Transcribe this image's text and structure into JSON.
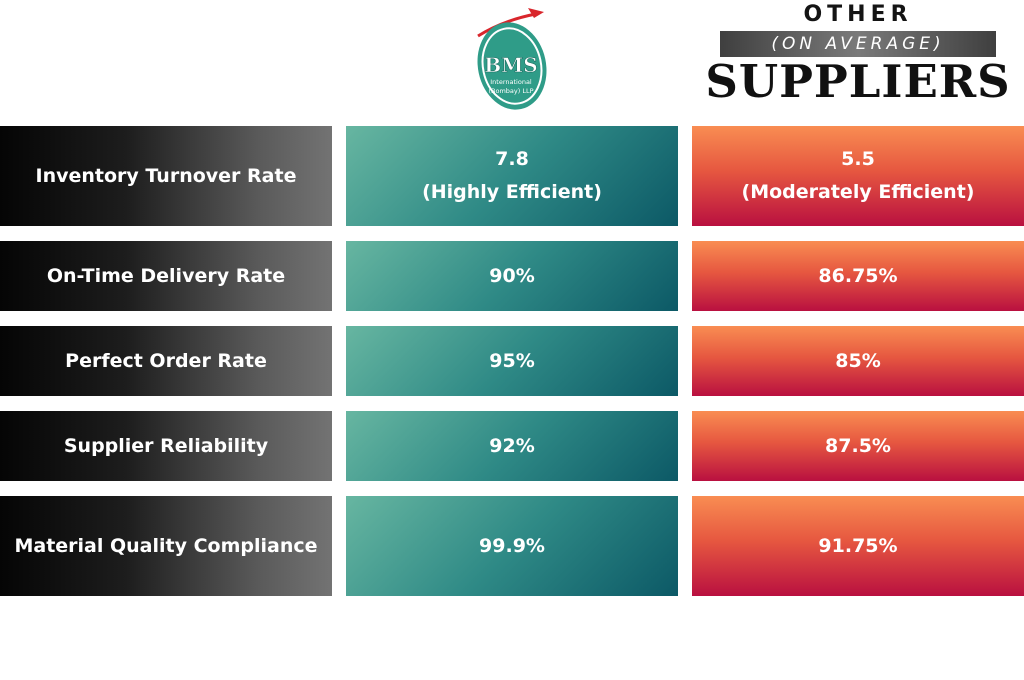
{
  "bms": {
    "brand": "BMS",
    "line1": "International",
    "line2": "(Bombay) LLP"
  },
  "other": {
    "word": "OTHER",
    "qualifier": "(ON AVERAGE)",
    "suppliers": "SUPPLIERS"
  },
  "rows": [
    {
      "metric": "Inventory Turnover Rate",
      "bms_value": "7.8\n(Highly Efficient)",
      "other_value": "5.5\n(Moderately Efficient)"
    },
    {
      "metric": "On-Time Delivery Rate",
      "bms_value": "90%",
      "other_value": "86.75%"
    },
    {
      "metric": "Perfect Order Rate",
      "bms_value": "95%",
      "other_value": "85%"
    },
    {
      "metric": "Supplier Reliability",
      "bms_value": "92%",
      "other_value": "87.5%"
    },
    {
      "metric": "Material Quality Compliance",
      "bms_value": "99.9%",
      "other_value": "91.75%"
    }
  ],
  "colors": {
    "bms_teal": "#2f8a86",
    "other_red": "#e65740",
    "metric_dark": "#1d1d1d",
    "logo_arrow": "#d9262c"
  }
}
